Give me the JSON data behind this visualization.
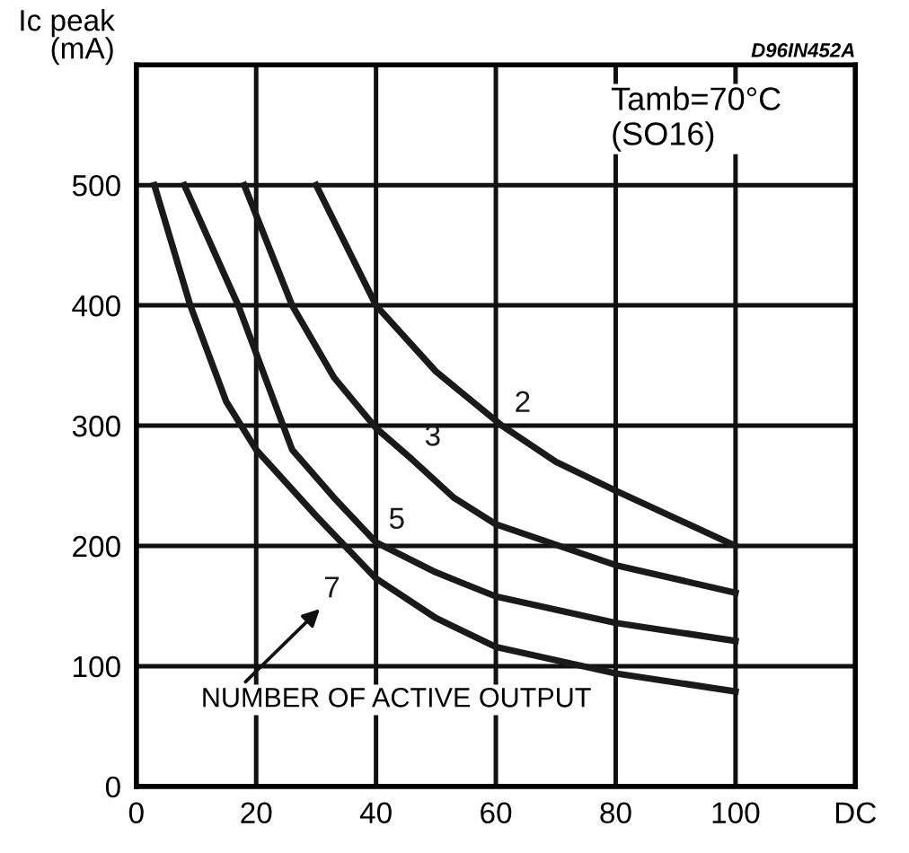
{
  "chart_data": {
    "type": "line",
    "ylabel": "Ic peak\n(mA)",
    "xlim": [
      0,
      120
    ],
    "xticks": [
      0,
      20,
      40,
      60,
      80,
      100,
      {
        "value": 120,
        "label": "DC"
      }
    ],
    "ylim": [
      0,
      600
    ],
    "yticks": [
      0,
      100,
      200,
      300,
      400,
      500,
      {
        "value": 600,
        "label": null
      }
    ],
    "grid": true,
    "marker": "none",
    "line_style": "solid",
    "series": [
      {
        "name": "2",
        "color": "#1a1a1a",
        "x": [
          30,
          40,
          50,
          61,
          70,
          80,
          100
        ],
        "values": [
          500,
          400,
          345,
          300,
          270,
          246,
          200
        ]
      },
      {
        "name": "3",
        "color": "#1a1a1a",
        "x": [
          18,
          26,
          33,
          40,
          46,
          53,
          60,
          80,
          100
        ],
        "values": [
          500,
          400,
          340,
          298,
          272,
          240,
          218,
          184,
          161
        ]
      },
      {
        "name": "5",
        "color": "#1a1a1a",
        "x": [
          8,
          17,
          26,
          33,
          40,
          50,
          60,
          80,
          100
        ],
        "values": [
          500,
          400,
          280,
          240,
          203,
          178,
          158,
          136,
          121
        ]
      },
      {
        "name": "7",
        "color": "#1a1a1a",
        "x": [
          3,
          9,
          15,
          20,
          30,
          40,
          50,
          60,
          80,
          100
        ],
        "values": [
          500,
          400,
          320,
          280,
          225,
          173,
          140,
          116,
          94,
          79
        ]
      }
    ],
    "annotations": [
      "NUMBER OF ACTIVE OUTPUT",
      "Tamb=70°C\n(SO16)",
      "D96IN452A"
    ]
  }
}
